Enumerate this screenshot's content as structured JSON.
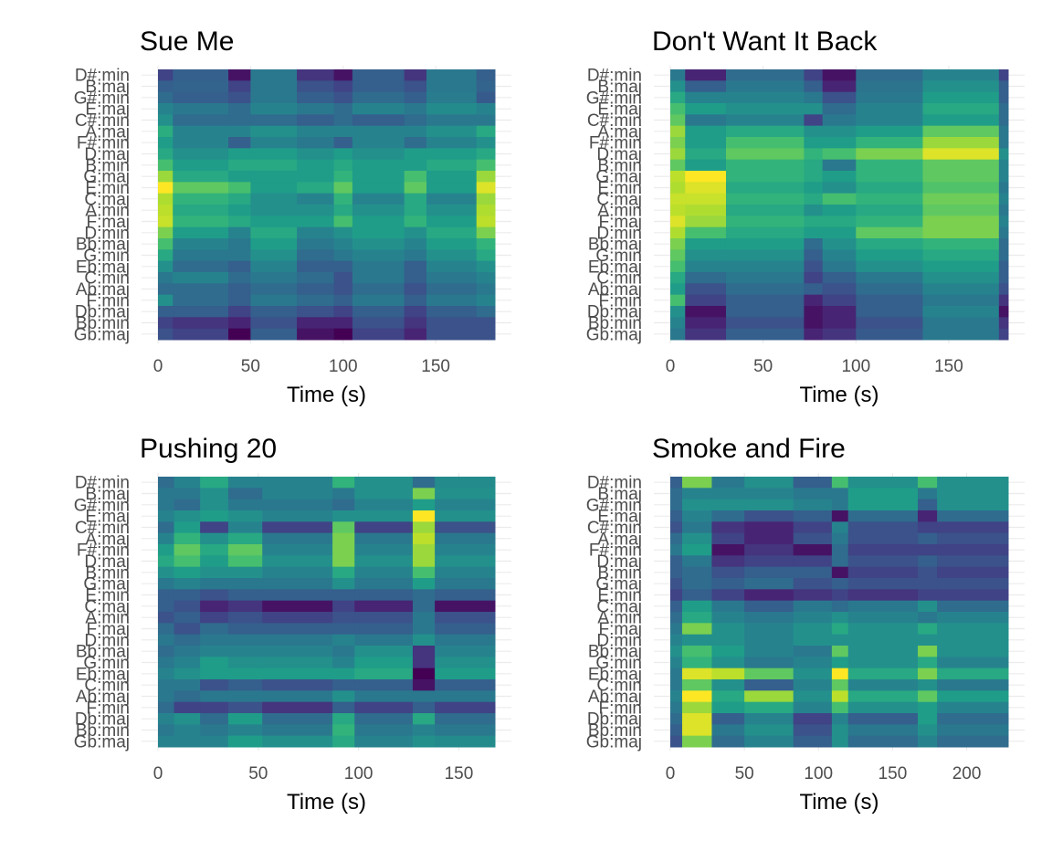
{
  "chart_data": [
    {
      "type": "heatmap",
      "title": "Sue Me",
      "xlabel": "Time (s)",
      "ylabel": "",
      "xlim": [
        0,
        182
      ],
      "xticks": [
        0,
        50,
        100,
        150
      ],
      "x_edges": [
        0,
        8,
        38,
        50,
        75,
        95,
        105,
        133,
        145,
        172,
        182
      ],
      "categories": [
        "D#:min",
        "B:maj",
        "G#:min",
        "E:maj",
        "C#:min",
        "A:maj",
        "F#:min",
        "D:maj",
        "B:min",
        "G:maj",
        "E:min",
        "C:maj",
        "A:min",
        "F:maj",
        "D:min",
        "Bb:maj",
        "G:min",
        "Eb:maj",
        "C:min",
        "Ab:maj",
        "F:min",
        "Db:maj",
        "Bb:min",
        "Gb:maj"
      ],
      "rows": [
        [
          0.2,
          0.3,
          0.05,
          0.4,
          0.15,
          0.05,
          0.3,
          0.15,
          0.4,
          0.3
        ],
        [
          0.3,
          0.32,
          0.2,
          0.4,
          0.25,
          0.2,
          0.3,
          0.25,
          0.4,
          0.32
        ],
        [
          0.35,
          0.3,
          0.25,
          0.4,
          0.3,
          0.25,
          0.35,
          0.3,
          0.42,
          0.28
        ],
        [
          0.45,
          0.4,
          0.35,
          0.45,
          0.4,
          0.35,
          0.45,
          0.4,
          0.48,
          0.45
        ],
        [
          0.5,
          0.35,
          0.35,
          0.35,
          0.3,
          0.35,
          0.3,
          0.35,
          0.4,
          0.4
        ],
        [
          0.62,
          0.45,
          0.45,
          0.5,
          0.45,
          0.45,
          0.45,
          0.45,
          0.5,
          0.6
        ],
        [
          0.55,
          0.45,
          0.3,
          0.45,
          0.4,
          0.3,
          0.45,
          0.35,
          0.45,
          0.5
        ],
        [
          0.6,
          0.5,
          0.55,
          0.55,
          0.5,
          0.55,
          0.5,
          0.55,
          0.55,
          0.6
        ],
        [
          0.7,
          0.55,
          0.6,
          0.6,
          0.55,
          0.6,
          0.55,
          0.55,
          0.6,
          0.7
        ],
        [
          0.85,
          0.6,
          0.55,
          0.55,
          0.55,
          0.65,
          0.55,
          0.7,
          0.55,
          0.85
        ],
        [
          1.0,
          0.75,
          0.7,
          0.55,
          0.6,
          0.75,
          0.55,
          0.75,
          0.55,
          0.95
        ],
        [
          0.88,
          0.65,
          0.6,
          0.5,
          0.45,
          0.65,
          0.45,
          0.6,
          0.45,
          0.85
        ],
        [
          0.9,
          0.6,
          0.55,
          0.5,
          0.5,
          0.6,
          0.5,
          0.6,
          0.5,
          0.88
        ],
        [
          0.92,
          0.65,
          0.6,
          0.55,
          0.55,
          0.7,
          0.55,
          0.65,
          0.55,
          0.9
        ],
        [
          0.8,
          0.55,
          0.45,
          0.6,
          0.45,
          0.5,
          0.55,
          0.5,
          0.6,
          0.8
        ],
        [
          0.7,
          0.45,
          0.4,
          0.55,
          0.4,
          0.45,
          0.5,
          0.45,
          0.55,
          0.65
        ],
        [
          0.6,
          0.4,
          0.4,
          0.5,
          0.35,
          0.4,
          0.45,
          0.4,
          0.5,
          0.6
        ],
        [
          0.5,
          0.35,
          0.3,
          0.45,
          0.3,
          0.3,
          0.4,
          0.3,
          0.45,
          0.5
        ],
        [
          0.4,
          0.45,
          0.35,
          0.4,
          0.35,
          0.25,
          0.4,
          0.3,
          0.4,
          0.45
        ],
        [
          0.35,
          0.35,
          0.3,
          0.35,
          0.3,
          0.25,
          0.35,
          0.25,
          0.35,
          0.4
        ],
        [
          0.5,
          0.35,
          0.3,
          0.4,
          0.35,
          0.3,
          0.4,
          0.3,
          0.4,
          0.45
        ],
        [
          0.3,
          0.3,
          0.2,
          0.3,
          0.25,
          0.2,
          0.3,
          0.2,
          0.3,
          0.35
        ],
        [
          0.2,
          0.15,
          0.1,
          0.25,
          0.1,
          0.1,
          0.25,
          0.15,
          0.25,
          0.25
        ],
        [
          0.25,
          0.2,
          0.0,
          0.3,
          0.05,
          0.0,
          0.2,
          0.1,
          0.25,
          0.25
        ]
      ]
    },
    {
      "type": "heatmap",
      "title": "Don't Want It Back",
      "xlabel": "Time (s)",
      "ylabel": "",
      "xlim": [
        0,
        182
      ],
      "xticks": [
        0,
        50,
        100,
        150
      ],
      "x_edges": [
        0,
        8,
        30,
        72,
        82,
        100,
        136,
        177,
        182
      ],
      "categories": [
        "D#:min",
        "B:maj",
        "G#:min",
        "E:maj",
        "C#:min",
        "A:maj",
        "F#:min",
        "D:maj",
        "B:min",
        "G:maj",
        "E:min",
        "C:maj",
        "A:min",
        "F:maj",
        "D:min",
        "Bb:maj",
        "G:min",
        "Eb:maj",
        "C:min",
        "Ab:maj",
        "F:min",
        "Db:maj",
        "Bb:min",
        "Gb:maj"
      ],
      "rows": [
        [
          0.4,
          0.1,
          0.35,
          0.2,
          0.05,
          0.35,
          0.45,
          0.2
        ],
        [
          0.5,
          0.3,
          0.4,
          0.3,
          0.1,
          0.38,
          0.5,
          0.3
        ],
        [
          0.6,
          0.45,
          0.45,
          0.4,
          0.25,
          0.4,
          0.55,
          0.3
        ],
        [
          0.7,
          0.55,
          0.5,
          0.5,
          0.35,
          0.45,
          0.6,
          0.35
        ],
        [
          0.75,
          0.4,
          0.45,
          0.2,
          0.4,
          0.45,
          0.55,
          0.35
        ],
        [
          0.85,
          0.55,
          0.6,
          0.5,
          0.5,
          0.55,
          0.75,
          0.4
        ],
        [
          0.8,
          0.55,
          0.7,
          0.55,
          0.55,
          0.65,
          0.85,
          0.4
        ],
        [
          0.85,
          0.6,
          0.75,
          0.65,
          0.7,
          0.8,
          0.95,
          0.5
        ],
        [
          0.75,
          0.55,
          0.65,
          0.6,
          0.4,
          0.65,
          0.75,
          0.45
        ],
        [
          0.9,
          1.0,
          0.65,
          0.6,
          0.55,
          0.65,
          0.75,
          0.45
        ],
        [
          0.88,
          0.95,
          0.6,
          0.55,
          0.5,
          0.6,
          0.72,
          0.4
        ],
        [
          0.92,
          0.92,
          0.65,
          0.6,
          0.7,
          0.65,
          0.78,
          0.45
        ],
        [
          0.9,
          0.88,
          0.6,
          0.5,
          0.55,
          0.6,
          0.75,
          0.4
        ],
        [
          0.95,
          0.85,
          0.65,
          0.6,
          0.6,
          0.65,
          0.8,
          0.45
        ],
        [
          0.88,
          0.7,
          0.6,
          0.55,
          0.55,
          0.75,
          0.8,
          0.4
        ],
        [
          0.8,
          0.55,
          0.55,
          0.35,
          0.5,
          0.6,
          0.65,
          0.35
        ],
        [
          0.75,
          0.5,
          0.5,
          0.3,
          0.45,
          0.55,
          0.6,
          0.35
        ],
        [
          0.7,
          0.45,
          0.45,
          0.25,
          0.4,
          0.5,
          0.55,
          0.3
        ],
        [
          0.6,
          0.35,
          0.4,
          0.2,
          0.3,
          0.4,
          0.5,
          0.3
        ],
        [
          0.55,
          0.25,
          0.35,
          0.3,
          0.25,
          0.35,
          0.45,
          0.25
        ],
        [
          0.7,
          0.2,
          0.3,
          0.1,
          0.2,
          0.3,
          0.4,
          0.15
        ],
        [
          0.5,
          0.05,
          0.3,
          0.05,
          0.1,
          0.3,
          0.45,
          0.05
        ],
        [
          0.45,
          0.1,
          0.25,
          0.05,
          0.1,
          0.25,
          0.4,
          0.15
        ],
        [
          0.4,
          0.15,
          0.3,
          0.1,
          0.15,
          0.28,
          0.4,
          0.2
        ]
      ]
    },
    {
      "type": "heatmap",
      "title": "Pushing 20",
      "xlabel": "Time (s)",
      "ylabel": "",
      "xlim": [
        0,
        168
      ],
      "xticks": [
        0,
        50,
        100,
        150
      ],
      "x_edges": [
        0,
        8,
        21,
        35,
        52,
        87,
        98,
        127,
        138,
        168
      ],
      "categories": [
        "D#:min",
        "B:maj",
        "G#:min",
        "E:maj",
        "C#:min",
        "A:maj",
        "F#:min",
        "D:maj",
        "B:min",
        "G:maj",
        "E:min",
        "C:maj",
        "A:min",
        "F:maj",
        "D:min",
        "Bb:maj",
        "G:min",
        "Eb:maj",
        "C:min",
        "Ab:maj",
        "F:min",
        "Db:maj",
        "Bb:min",
        "Gb:maj"
      ],
      "rows": [
        [
          0.35,
          0.45,
          0.6,
          0.45,
          0.45,
          0.65,
          0.5,
          0.35,
          0.48
        ],
        [
          0.4,
          0.4,
          0.5,
          0.35,
          0.45,
          0.4,
          0.5,
          0.8,
          0.5
        ],
        [
          0.4,
          0.35,
          0.5,
          0.4,
          0.4,
          0.35,
          0.45,
          0.55,
          0.45
        ],
        [
          0.45,
          0.5,
          0.55,
          0.5,
          0.45,
          0.5,
          0.5,
          1.0,
          0.5
        ],
        [
          0.35,
          0.55,
          0.2,
          0.45,
          0.2,
          0.75,
          0.2,
          0.85,
          0.25
        ],
        [
          0.45,
          0.65,
          0.5,
          0.6,
          0.4,
          0.8,
          0.4,
          0.9,
          0.4
        ],
        [
          0.55,
          0.75,
          0.6,
          0.75,
          0.45,
          0.8,
          0.45,
          0.85,
          0.45
        ],
        [
          0.6,
          0.7,
          0.55,
          0.7,
          0.5,
          0.8,
          0.5,
          0.85,
          0.5
        ],
        [
          0.5,
          0.55,
          0.5,
          0.5,
          0.45,
          0.6,
          0.45,
          0.7,
          0.45
        ],
        [
          0.4,
          0.45,
          0.4,
          0.4,
          0.4,
          0.5,
          0.4,
          0.55,
          0.4
        ],
        [
          0.3,
          0.3,
          0.25,
          0.3,
          0.3,
          0.3,
          0.3,
          0.35,
          0.3
        ],
        [
          0.3,
          0.25,
          0.1,
          0.15,
          0.05,
          0.2,
          0.1,
          0.35,
          0.05
        ],
        [
          0.25,
          0.3,
          0.2,
          0.25,
          0.2,
          0.25,
          0.25,
          0.4,
          0.25
        ],
        [
          0.35,
          0.25,
          0.35,
          0.3,
          0.3,
          0.3,
          0.3,
          0.4,
          0.3
        ],
        [
          0.4,
          0.35,
          0.4,
          0.4,
          0.4,
          0.45,
          0.4,
          0.5,
          0.4
        ],
        [
          0.35,
          0.4,
          0.45,
          0.45,
          0.45,
          0.4,
          0.5,
          0.15,
          0.45
        ],
        [
          0.4,
          0.45,
          0.55,
          0.5,
          0.5,
          0.45,
          0.55,
          0.15,
          0.5
        ],
        [
          0.45,
          0.5,
          0.55,
          0.55,
          0.55,
          0.55,
          0.6,
          0.0,
          0.55
        ],
        [
          0.4,
          0.4,
          0.25,
          0.3,
          0.25,
          0.3,
          0.3,
          0.05,
          0.3
        ],
        [
          0.4,
          0.35,
          0.4,
          0.4,
          0.4,
          0.5,
          0.4,
          0.4,
          0.4
        ],
        [
          0.35,
          0.2,
          0.2,
          0.25,
          0.15,
          0.3,
          0.2,
          0.3,
          0.2
        ],
        [
          0.45,
          0.5,
          0.35,
          0.55,
          0.35,
          0.6,
          0.35,
          0.6,
          0.35
        ],
        [
          0.4,
          0.45,
          0.4,
          0.45,
          0.4,
          0.65,
          0.4,
          0.45,
          0.4
        ],
        [
          0.45,
          0.45,
          0.45,
          0.55,
          0.5,
          0.6,
          0.45,
          0.5,
          0.48
        ]
      ]
    },
    {
      "type": "heatmap",
      "title": "Smoke and Fire",
      "xlabel": "Time (s)",
      "ylabel": "",
      "xlim": [
        0,
        228
      ],
      "xticks": [
        0,
        50,
        100,
        150,
        200
      ],
      "x_edges": [
        0,
        8,
        28,
        50,
        83,
        109,
        120,
        167,
        180,
        228
      ],
      "categories": [
        "D#:min",
        "B:maj",
        "G#:min",
        "E:maj",
        "C#:min",
        "A:maj",
        "F#:min",
        "D:maj",
        "B:min",
        "G:maj",
        "E:min",
        "C:maj",
        "A:min",
        "F:maj",
        "D:min",
        "Bb:maj",
        "G:min",
        "Eb:maj",
        "C:min",
        "Ab:maj",
        "F:min",
        "Db:maj",
        "Bb:min",
        "Gb:maj"
      ],
      "rows": [
        [
          0.3,
          0.8,
          0.4,
          0.5,
          0.3,
          0.7,
          0.5,
          0.7,
          0.5
        ],
        [
          0.35,
          0.45,
          0.45,
          0.45,
          0.4,
          0.4,
          0.55,
          0.4,
          0.5
        ],
        [
          0.35,
          0.5,
          0.5,
          0.5,
          0.45,
          0.4,
          0.55,
          0.3,
          0.5
        ],
        [
          0.3,
          0.45,
          0.35,
          0.25,
          0.3,
          0.05,
          0.35,
          0.1,
          0.35
        ],
        [
          0.25,
          0.4,
          0.15,
          0.1,
          0.2,
          0.45,
          0.25,
          0.2,
          0.2
        ],
        [
          0.35,
          0.5,
          0.2,
          0.1,
          0.25,
          0.4,
          0.25,
          0.3,
          0.25
        ],
        [
          0.4,
          0.55,
          0.05,
          0.15,
          0.05,
          0.35,
          0.2,
          0.2,
          0.2
        ],
        [
          0.3,
          0.4,
          0.15,
          0.2,
          0.2,
          0.35,
          0.25,
          0.3,
          0.25
        ],
        [
          0.3,
          0.35,
          0.25,
          0.3,
          0.3,
          0.05,
          0.2,
          0.25,
          0.2
        ],
        [
          0.25,
          0.35,
          0.3,
          0.35,
          0.25,
          0.3,
          0.25,
          0.25,
          0.25
        ],
        [
          0.2,
          0.3,
          0.2,
          0.1,
          0.15,
          0.2,
          0.15,
          0.2,
          0.2
        ],
        [
          0.3,
          0.55,
          0.4,
          0.3,
          0.4,
          0.35,
          0.4,
          0.5,
          0.35
        ],
        [
          0.35,
          0.6,
          0.45,
          0.4,
          0.45,
          0.5,
          0.45,
          0.4,
          0.45
        ],
        [
          0.4,
          0.8,
          0.5,
          0.45,
          0.5,
          0.6,
          0.5,
          0.6,
          0.5
        ],
        [
          0.45,
          0.5,
          0.5,
          0.45,
          0.5,
          0.5,
          0.5,
          0.5,
          0.5
        ],
        [
          0.5,
          0.7,
          0.55,
          0.45,
          0.4,
          0.75,
          0.5,
          0.8,
          0.5
        ],
        [
          0.45,
          0.65,
          0.5,
          0.4,
          0.45,
          0.55,
          0.5,
          0.6,
          0.45
        ],
        [
          0.4,
          0.95,
          0.9,
          0.75,
          0.5,
          1.0,
          0.6,
          0.8,
          0.6
        ],
        [
          0.4,
          0.75,
          0.5,
          0.3,
          0.45,
          0.75,
          0.45,
          0.5,
          0.4
        ],
        [
          0.45,
          1.0,
          0.6,
          0.85,
          0.5,
          0.9,
          0.6,
          0.75,
          0.55
        ],
        [
          0.4,
          0.85,
          0.55,
          0.6,
          0.45,
          0.7,
          0.5,
          0.55,
          0.45
        ],
        [
          0.35,
          0.95,
          0.3,
          0.45,
          0.2,
          0.45,
          0.3,
          0.55,
          0.35
        ],
        [
          0.3,
          0.95,
          0.4,
          0.5,
          0.25,
          0.5,
          0.4,
          0.5,
          0.4
        ],
        [
          0.25,
          0.8,
          0.35,
          0.45,
          0.3,
          0.5,
          0.35,
          0.45,
          0.35
        ]
      ]
    }
  ]
}
